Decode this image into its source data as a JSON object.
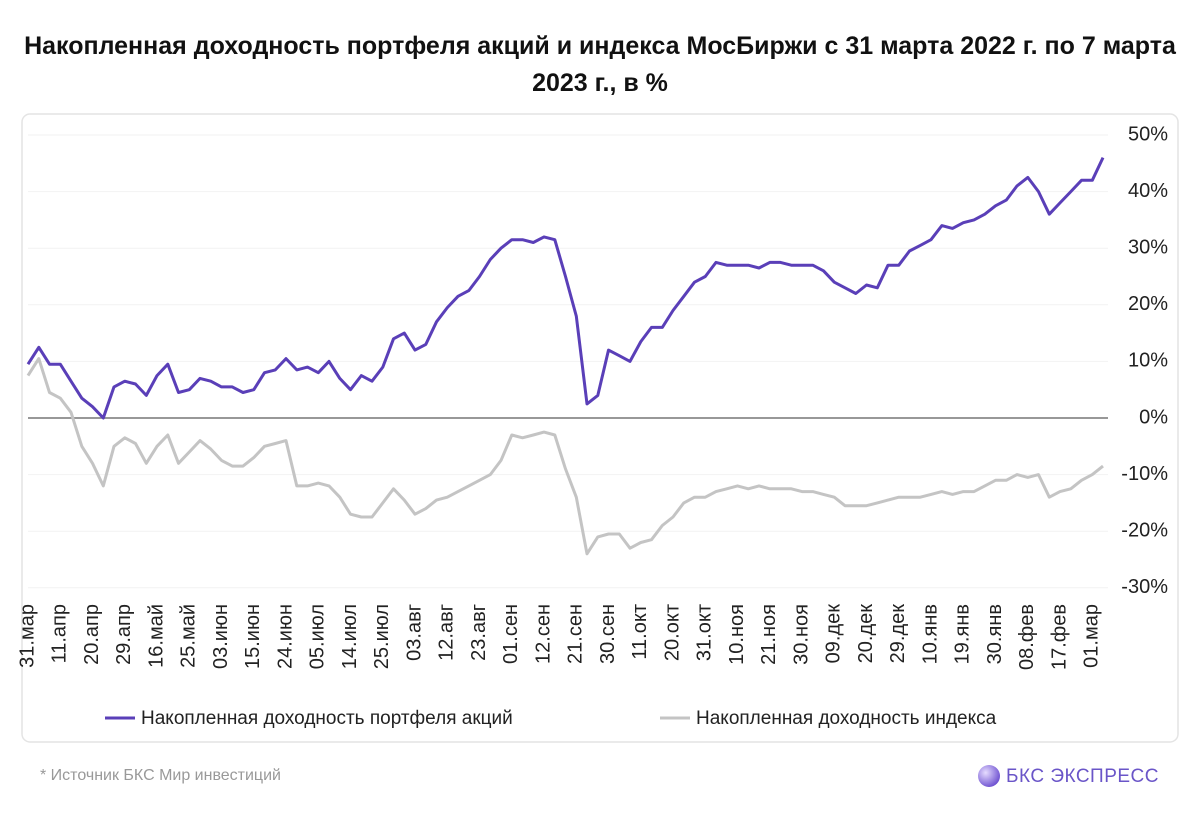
{
  "chart_data": {
    "type": "line",
    "title": "Накопленная доходность портфеля акций и индекса МосБиржи с 31 марта 2022 г. по 7 марта 2023 г., в %",
    "categories": [
      "31.мар",
      null,
      null,
      "11.апр",
      null,
      null,
      "20.апр",
      null,
      null,
      "29.апр",
      null,
      null,
      "16.май",
      null,
      null,
      "25.май",
      null,
      null,
      "03.июн",
      null,
      null,
      "15.июн",
      null,
      null,
      "24.июн",
      null,
      null,
      "05.июл",
      null,
      null,
      "14.июл",
      null,
      null,
      "25.июл",
      null,
      null,
      "03.авг",
      null,
      null,
      "12.авг",
      null,
      null,
      "23.авг",
      null,
      null,
      "01.сен",
      null,
      null,
      "12.сен",
      null,
      null,
      "21.сен",
      null,
      null,
      "30.сен",
      null,
      null,
      "11.окт",
      null,
      null,
      "20.окт",
      null,
      null,
      "31.окт",
      null,
      null,
      "10.ноя",
      null,
      null,
      "21.ноя",
      null,
      null,
      "30.ноя",
      null,
      null,
      "09.дек",
      null,
      null,
      "20.дек",
      null,
      null,
      "29.дек",
      null,
      null,
      "10.янв",
      null,
      null,
      "19.янв",
      null,
      null,
      "30.янв",
      null,
      null,
      "08.фев",
      null,
      null,
      "17.фев",
      null,
      null,
      "01.мар",
      null
    ],
    "series": [
      {
        "name": "Накопленная доходность портфеля акций",
        "color": "#5a3fb8",
        "values": [
          9.5,
          12.5,
          9.5,
          9.5,
          6.5,
          3.5,
          2,
          0,
          5.5,
          6.5,
          6,
          4,
          7.5,
          9.5,
          4.5,
          5,
          7,
          6.5,
          5.5,
          5.5,
          4.5,
          5,
          8,
          8.5,
          10.5,
          8.5,
          9,
          8,
          10,
          7,
          5,
          7.5,
          6.5,
          9,
          14,
          15,
          12,
          13,
          17,
          19.5,
          21.5,
          22.5,
          25,
          28,
          30,
          31.5,
          31.5,
          31,
          32,
          31.5,
          25,
          18,
          2.5,
          4,
          12,
          11,
          10,
          13.5,
          16,
          16,
          19,
          21.5,
          24,
          25,
          27.5,
          27,
          27,
          27,
          26.5,
          27.5,
          27.5,
          27,
          27,
          27,
          26,
          24,
          23,
          22,
          23.5,
          23,
          27,
          27,
          29.5,
          30.5,
          31.5,
          34,
          33.5,
          34.5,
          35,
          36,
          37.5,
          38.5,
          41,
          42.5,
          40,
          36,
          38,
          40,
          42,
          42,
          46
        ]
      },
      {
        "name": "Накопленная доходность индекса",
        "color": "#c4c4c4",
        "values": [
          7.5,
          10.5,
          4.5,
          3.5,
          1,
          -5,
          -8,
          -12,
          -5,
          -3.5,
          -4.5,
          -8,
          -5,
          -3,
          -8,
          -6,
          -4,
          -5.5,
          -7.5,
          -8.5,
          -8.5,
          -7,
          -5,
          -4.5,
          -4,
          -12,
          -12,
          -11.5,
          -12,
          -14,
          -17,
          -17.5,
          -17.5,
          -15,
          -12.5,
          -14.5,
          -17,
          -16,
          -14.5,
          -14,
          -13,
          -12,
          -11,
          -10,
          -7.5,
          -3,
          -3.5,
          -3,
          -2.5,
          -3,
          -9,
          -14,
          -24,
          -21,
          -20.5,
          -20.5,
          -23,
          -22,
          -21.5,
          -19,
          -17.5,
          -15,
          -14,
          -14,
          -13,
          -12.5,
          -12,
          -12.5,
          -12,
          -12.5,
          -12.5,
          -12.5,
          -13,
          -13,
          -13.5,
          -14,
          -15.5,
          -15.5,
          -15.5,
          -15,
          -14.5,
          -14,
          -14,
          -14,
          -13.5,
          -13,
          -13.5,
          -13,
          -13,
          -12,
          -11,
          -11,
          -10,
          -10.5,
          -10,
          -14,
          -13,
          -12.5,
          -11,
          -10,
          -8.5
        ]
      }
    ],
    "ylim": [
      -32,
      52
    ],
    "yticks": [
      {
        "value": 50,
        "label": "50%"
      },
      {
        "value": 40,
        "label": "40%"
      },
      {
        "value": 30,
        "label": "30%"
      },
      {
        "value": 20,
        "label": "20%"
      },
      {
        "value": 10,
        "label": "10%"
      },
      {
        "value": 0,
        "label": "0%"
      },
      {
        "value": -10,
        "label": "-10%"
      },
      {
        "value": -20,
        "label": "-20%"
      },
      {
        "value": -30,
        "label": "-30%"
      }
    ],
    "grid": true,
    "legend": "bottom",
    "source_note": "*  Источник БКС Мир инвестиций",
    "brand": "БКС ЭКСПРЕСС"
  }
}
